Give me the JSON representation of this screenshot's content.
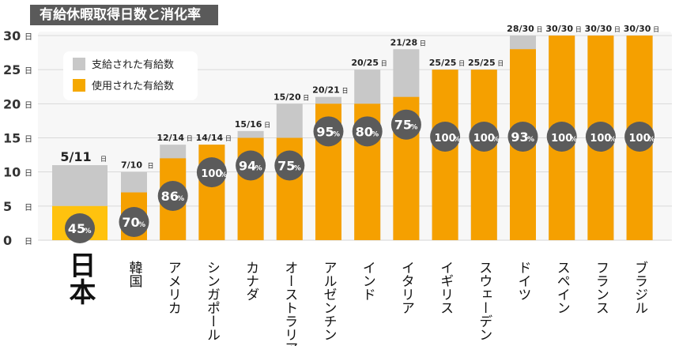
{
  "title": "有給休暇取得日数と消化率",
  "legend": [
    {
      "label": "支給された有給数",
      "color": "#c8c8c8"
    },
    {
      "label": "使用された有給数",
      "color": "#f5a800"
    }
  ],
  "colors": {
    "granted": "#c8c8c8",
    "used_japan": "#ffc20e",
    "used_others": "#f5a000",
    "badge": "#5b5b5b",
    "grid": "#d9d9d9",
    "title_bg": "#5a5a5a"
  },
  "chart_data": {
    "type": "bar",
    "title": "有給休暇取得日数と消化率",
    "xlabel": "",
    "ylabel": "",
    "ylim": [
      0,
      30
    ],
    "y_ticks": [
      "0",
      "5",
      "10",
      "15",
      "20",
      "25",
      "30"
    ],
    "y_unit": "日",
    "grid": true,
    "legend_position": "top-left",
    "categories": [
      "日本",
      "韓国",
      "アメリカ",
      "シンガポール",
      "カナダ",
      "オーストラリア",
      "アルゼンチン",
      "インド",
      "イタリア",
      "イギリス",
      "スウェーデン",
      "ドイツ",
      "スペイン",
      "フランス",
      "ブラジル"
    ],
    "series": [
      {
        "name": "支給された有給数",
        "values": [
          11,
          10,
          14,
          14,
          16,
          20,
          21,
          25,
          28,
          25,
          25,
          30,
          30,
          30,
          30
        ]
      },
      {
        "name": "使用された有給数",
        "values": [
          5,
          7,
          12,
          14,
          15,
          15,
          20,
          20,
          21,
          25,
          25,
          28,
          30,
          30,
          30
        ]
      }
    ],
    "data_labels": [
      "5/11",
      "7/10",
      "12/14",
      "14/14",
      "15/16",
      "15/20",
      "20/21",
      "20/25",
      "21/28",
      "25/25",
      "25/25",
      "28/30",
      "30/30",
      "30/30",
      "30/30"
    ],
    "label_unit": "日",
    "percentages": [
      "45",
      "70",
      "86",
      "100",
      "94",
      "75",
      "95",
      "80",
      "75",
      "100",
      "100",
      "93",
      "100",
      "100",
      "100"
    ],
    "percent_unit": "%"
  }
}
